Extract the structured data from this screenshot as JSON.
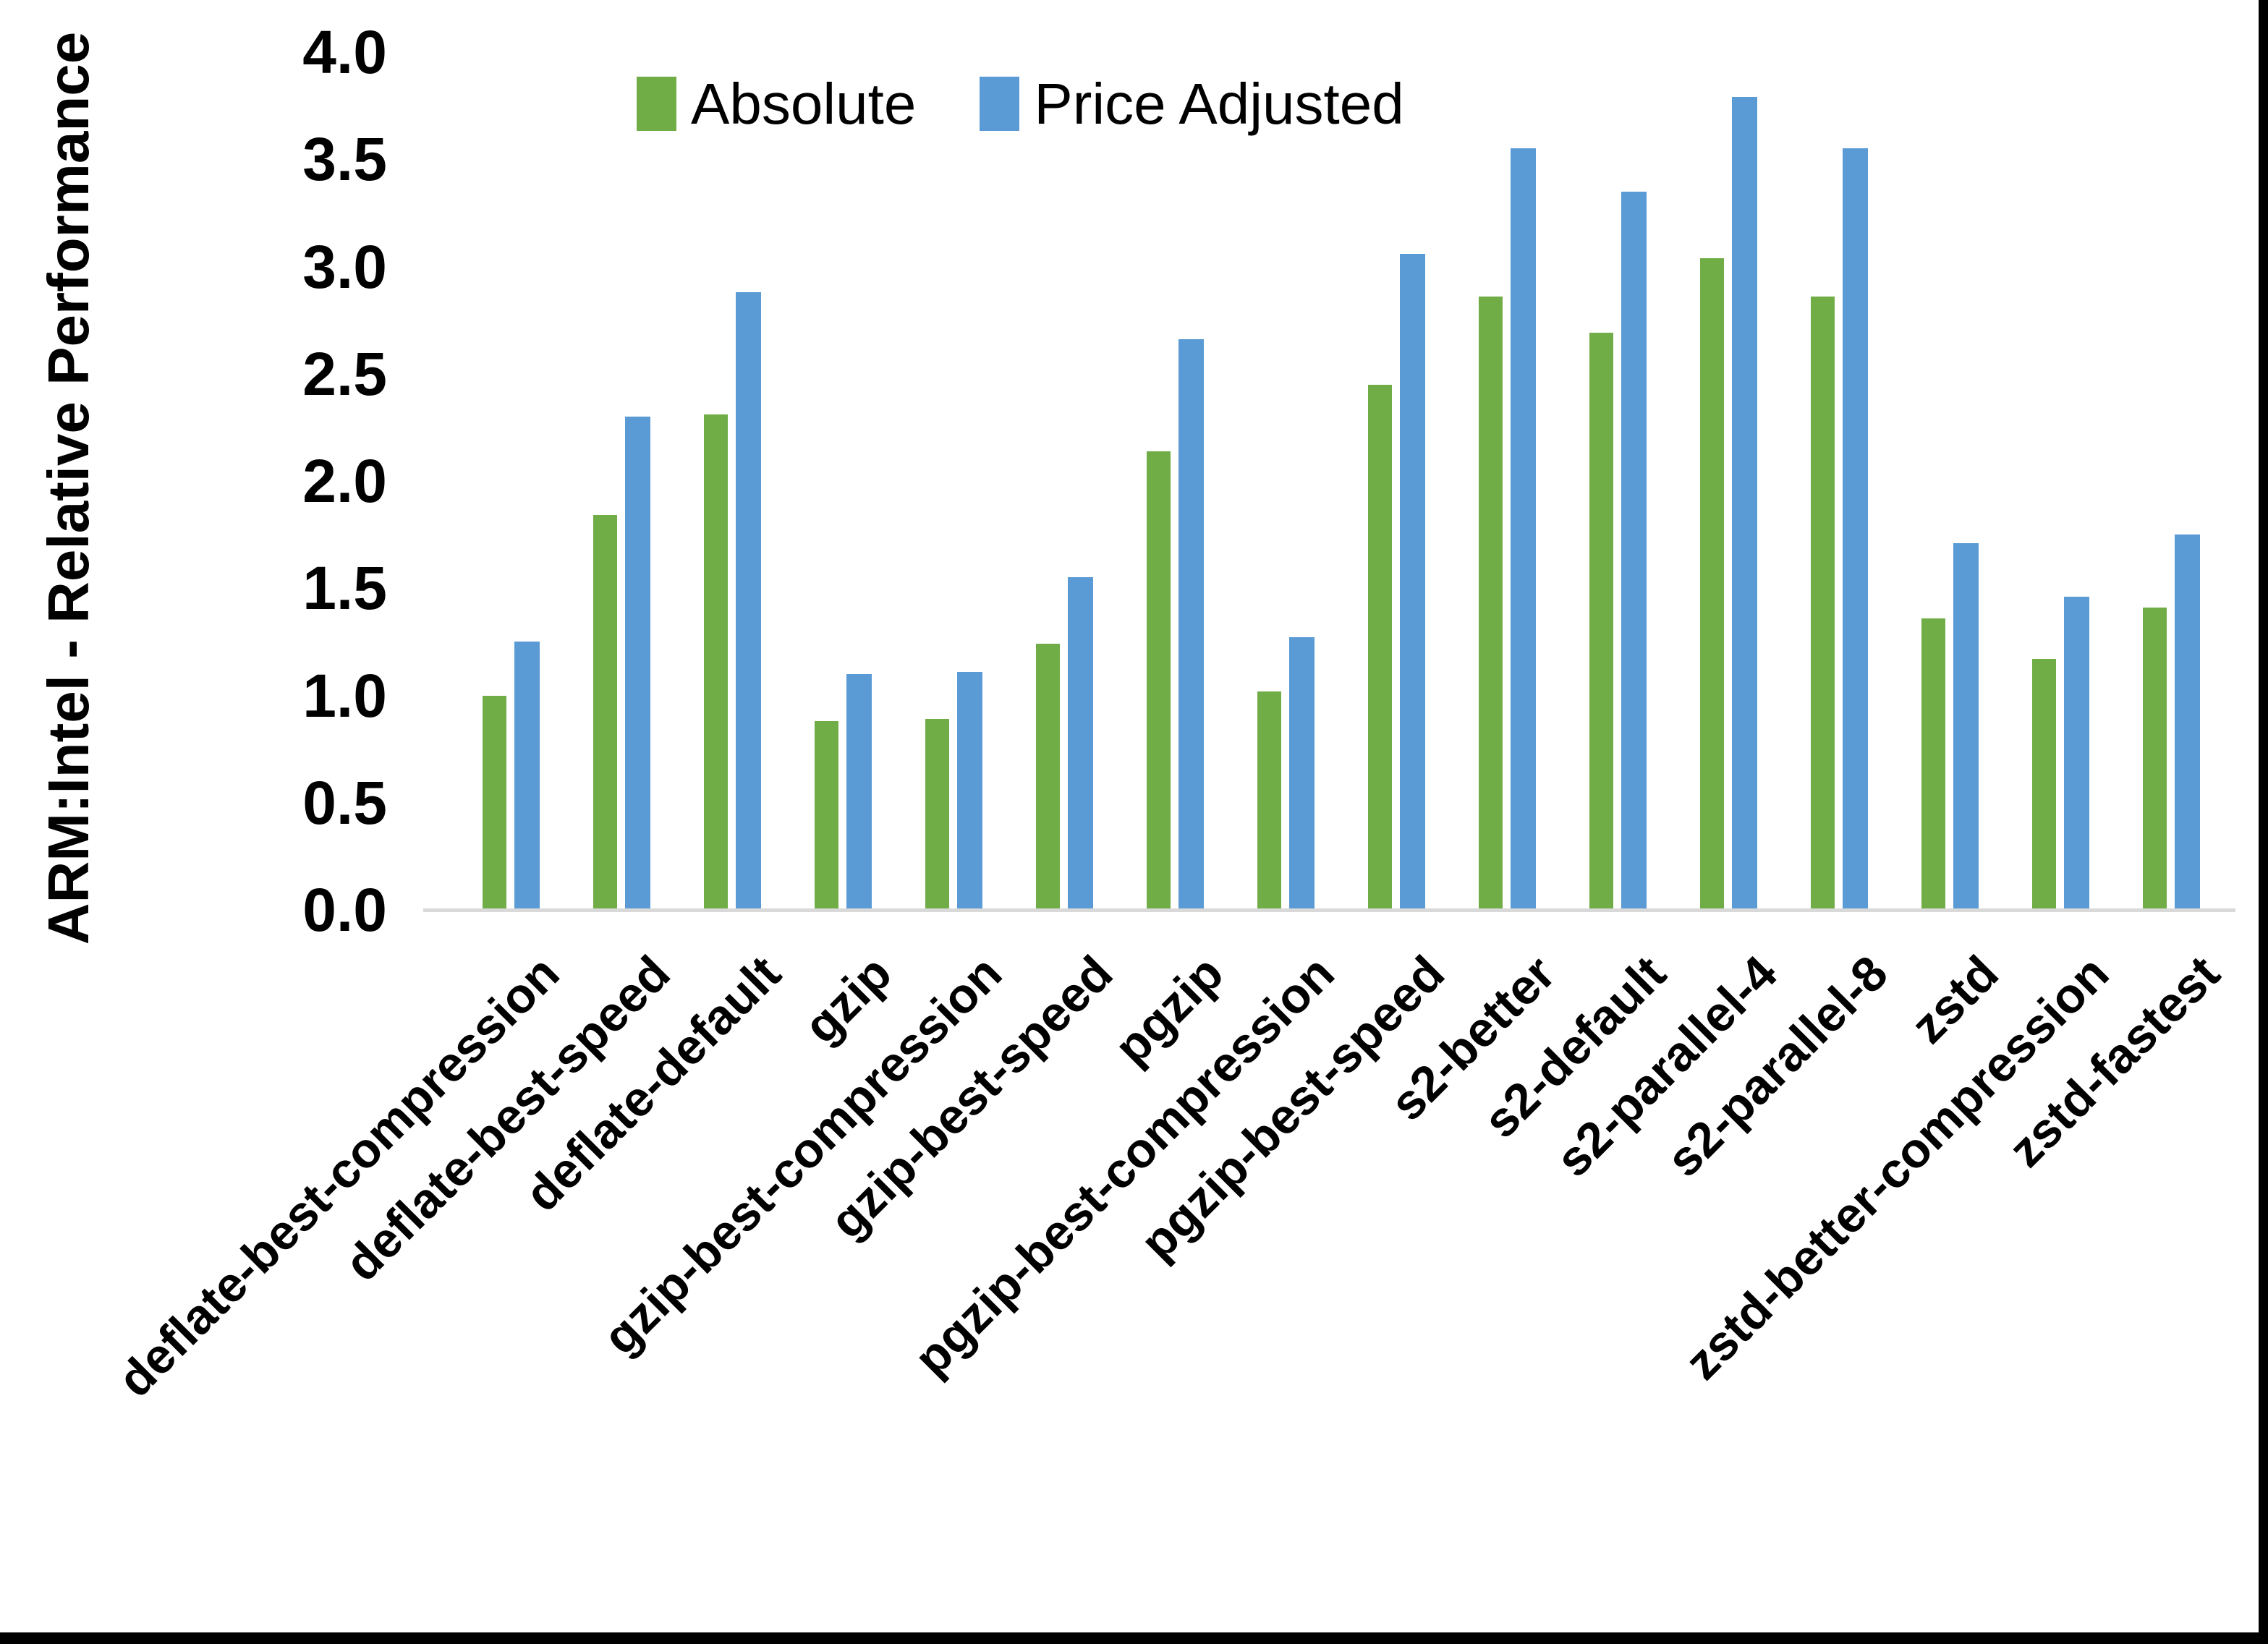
{
  "chart_data": {
    "type": "bar",
    "title": "",
    "xlabel": "",
    "ylabel": "ARM:Intel - Relative Performance",
    "categories": [
      "deflate-best-compression",
      "deflate-best-speed",
      "deflate-default",
      "gzip",
      "gzip-best-compression",
      "gzip-best-speed",
      "pgzip",
      "pgzip-best-compression",
      "pgzip-best-speed",
      "s2-better",
      "s2-default",
      "s2-parallel-4",
      "s2-parallel-8",
      "zstd",
      "zstd-better-compression",
      "zstd-fastest"
    ],
    "series": [
      {
        "name": "Absolute",
        "color": "#70AD47",
        "values": [
          1.0,
          1.84,
          2.31,
          0.88,
          0.89,
          1.24,
          2.14,
          1.02,
          2.45,
          2.86,
          2.69,
          3.04,
          2.86,
          1.36,
          1.17,
          1.41
        ]
      },
      {
        "name": "Price Adjusted",
        "color": "#5B9BD5",
        "values": [
          1.25,
          2.3,
          2.88,
          1.1,
          1.11,
          1.55,
          2.66,
          1.27,
          3.06,
          3.55,
          3.35,
          3.79,
          3.55,
          1.71,
          1.46,
          1.75
        ]
      }
    ],
    "ylim": [
      0.0,
      4.0
    ],
    "ytick_step": 0.5,
    "ytick_labels": [
      "4.0",
      "3.5",
      "3.0",
      "2.5",
      "2.0",
      "1.5",
      "1.0",
      "0.5",
      "0.0"
    ],
    "grid": false,
    "legend_position": "top-center",
    "axis_line_color": "#D9D9D9",
    "frame_color": "#000000"
  }
}
